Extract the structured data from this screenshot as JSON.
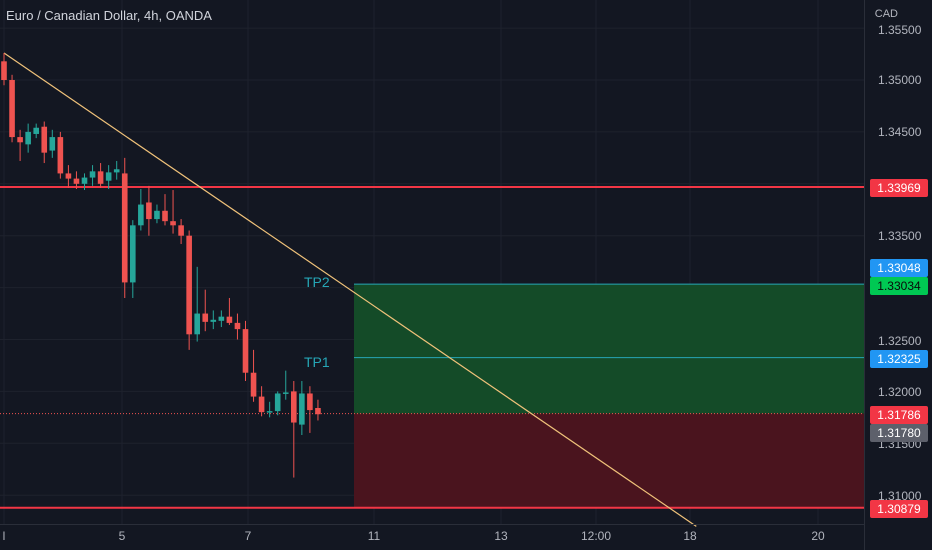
{
  "header": {
    "title": "Euro / Canadian Dollar, 4h, OANDA",
    "currency": "CAD"
  },
  "y_axis": {
    "ticks": [
      "1.35500",
      "1.35000",
      "1.34500",
      "1.33500",
      "1.32500",
      "1.32000",
      "1.31500",
      "1.31000"
    ]
  },
  "x_axis": {
    "ticks": [
      "l",
      "5",
      "7",
      "11",
      "13",
      "12:00",
      "18",
      "20"
    ]
  },
  "trade_labels": {
    "tp2": "TP2",
    "tp1": "TP1"
  },
  "price_badges": {
    "upper_resistance": "1.33969",
    "tp2_price": "1.33048",
    "tp2_target": "1.33034",
    "tp1_price": "1.32325",
    "entry_price": "1.31786",
    "last_price": "1.31780",
    "lower_support": "1.30879"
  },
  "colors": {
    "background": "#131722",
    "up": "#26a69a",
    "down": "#ef5350",
    "line": "#f23645",
    "tp": "#26a6b6"
  },
  "chart_data": {
    "type": "candlestick",
    "title": "Euro / Canadian Dollar, 4h, OANDA",
    "ylim": [
      1.307,
      1.356
    ],
    "hlines": [
      1.33969,
      1.30879
    ],
    "trendline": {
      "from": [
        0,
        1.3526
      ],
      "to": [
        86,
        1.307
      ]
    },
    "position": {
      "entry": 1.31786,
      "stop": 1.30879,
      "tp1": 1.32325,
      "tp2": 1.33034
    },
    "candles": [
      {
        "o": 1.3518,
        "h": 1.3526,
        "l": 1.3495,
        "c": 1.35
      },
      {
        "o": 1.35,
        "h": 1.3505,
        "l": 1.344,
        "c": 1.3445
      },
      {
        "o": 1.3445,
        "h": 1.3452,
        "l": 1.3422,
        "c": 1.344
      },
      {
        "o": 1.3438,
        "h": 1.3458,
        "l": 1.343,
        "c": 1.345
      },
      {
        "o": 1.3448,
        "h": 1.3458,
        "l": 1.3444,
        "c": 1.3454
      },
      {
        "o": 1.3455,
        "h": 1.346,
        "l": 1.342,
        "c": 1.343
      },
      {
        "o": 1.3432,
        "h": 1.3452,
        "l": 1.3425,
        "c": 1.3445
      },
      {
        "o": 1.3445,
        "h": 1.345,
        "l": 1.3405,
        "c": 1.341
      },
      {
        "o": 1.341,
        "h": 1.3418,
        "l": 1.3396,
        "c": 1.3405
      },
      {
        "o": 1.3405,
        "h": 1.3412,
        "l": 1.3395,
        "c": 1.34
      },
      {
        "o": 1.34,
        "h": 1.341,
        "l": 1.3394,
        "c": 1.3406
      },
      {
        "o": 1.3406,
        "h": 1.3418,
        "l": 1.3398,
        "c": 1.3412
      },
      {
        "o": 1.3412,
        "h": 1.342,
        "l": 1.3396,
        "c": 1.34
      },
      {
        "o": 1.3403,
        "h": 1.3418,
        "l": 1.3395,
        "c": 1.3411
      },
      {
        "o": 1.3411,
        "h": 1.3422,
        "l": 1.3404,
        "c": 1.3414
      },
      {
        "o": 1.341,
        "h": 1.3425,
        "l": 1.329,
        "c": 1.3305
      },
      {
        "o": 1.3305,
        "h": 1.3365,
        "l": 1.329,
        "c": 1.336
      },
      {
        "o": 1.336,
        "h": 1.3395,
        "l": 1.3355,
        "c": 1.338
      },
      {
        "o": 1.3382,
        "h": 1.3398,
        "l": 1.335,
        "c": 1.3366
      },
      {
        "o": 1.3366,
        "h": 1.338,
        "l": 1.3362,
        "c": 1.3374
      },
      {
        "o": 1.3374,
        "h": 1.339,
        "l": 1.336,
        "c": 1.3364
      },
      {
        "o": 1.3364,
        "h": 1.3394,
        "l": 1.3352,
        "c": 1.336
      },
      {
        "o": 1.336,
        "h": 1.3366,
        "l": 1.3342,
        "c": 1.335
      },
      {
        "o": 1.335,
        "h": 1.3355,
        "l": 1.324,
        "c": 1.3255
      },
      {
        "o": 1.3255,
        "h": 1.332,
        "l": 1.3248,
        "c": 1.3275
      },
      {
        "o": 1.3275,
        "h": 1.3298,
        "l": 1.3258,
        "c": 1.3267
      },
      {
        "o": 1.3267,
        "h": 1.3278,
        "l": 1.326,
        "c": 1.3269
      },
      {
        "o": 1.3268,
        "h": 1.3278,
        "l": 1.3262,
        "c": 1.3272
      },
      {
        "o": 1.3272,
        "h": 1.329,
        "l": 1.3264,
        "c": 1.3266
      },
      {
        "o": 1.3266,
        "h": 1.3275,
        "l": 1.325,
        "c": 1.326
      },
      {
        "o": 1.326,
        "h": 1.3268,
        "l": 1.321,
        "c": 1.3218
      },
      {
        "o": 1.3218,
        "h": 1.324,
        "l": 1.319,
        "c": 1.3195
      },
      {
        "o": 1.3195,
        "h": 1.3205,
        "l": 1.3176,
        "c": 1.318
      },
      {
        "o": 1.318,
        "h": 1.319,
        "l": 1.3175,
        "c": 1.3181
      },
      {
        "o": 1.3181,
        "h": 1.32,
        "l": 1.3177,
        "c": 1.3198
      },
      {
        "o": 1.3198,
        "h": 1.322,
        "l": 1.3192,
        "c": 1.3199
      },
      {
        "o": 1.32,
        "h": 1.321,
        "l": 1.3117,
        "c": 1.317
      },
      {
        "o": 1.3168,
        "h": 1.321,
        "l": 1.3158,
        "c": 1.3198
      },
      {
        "o": 1.3198,
        "h": 1.3205,
        "l": 1.316,
        "c": 1.3182
      },
      {
        "o": 1.3184,
        "h": 1.3192,
        "l": 1.3172,
        "c": 1.3178
      }
    ]
  }
}
